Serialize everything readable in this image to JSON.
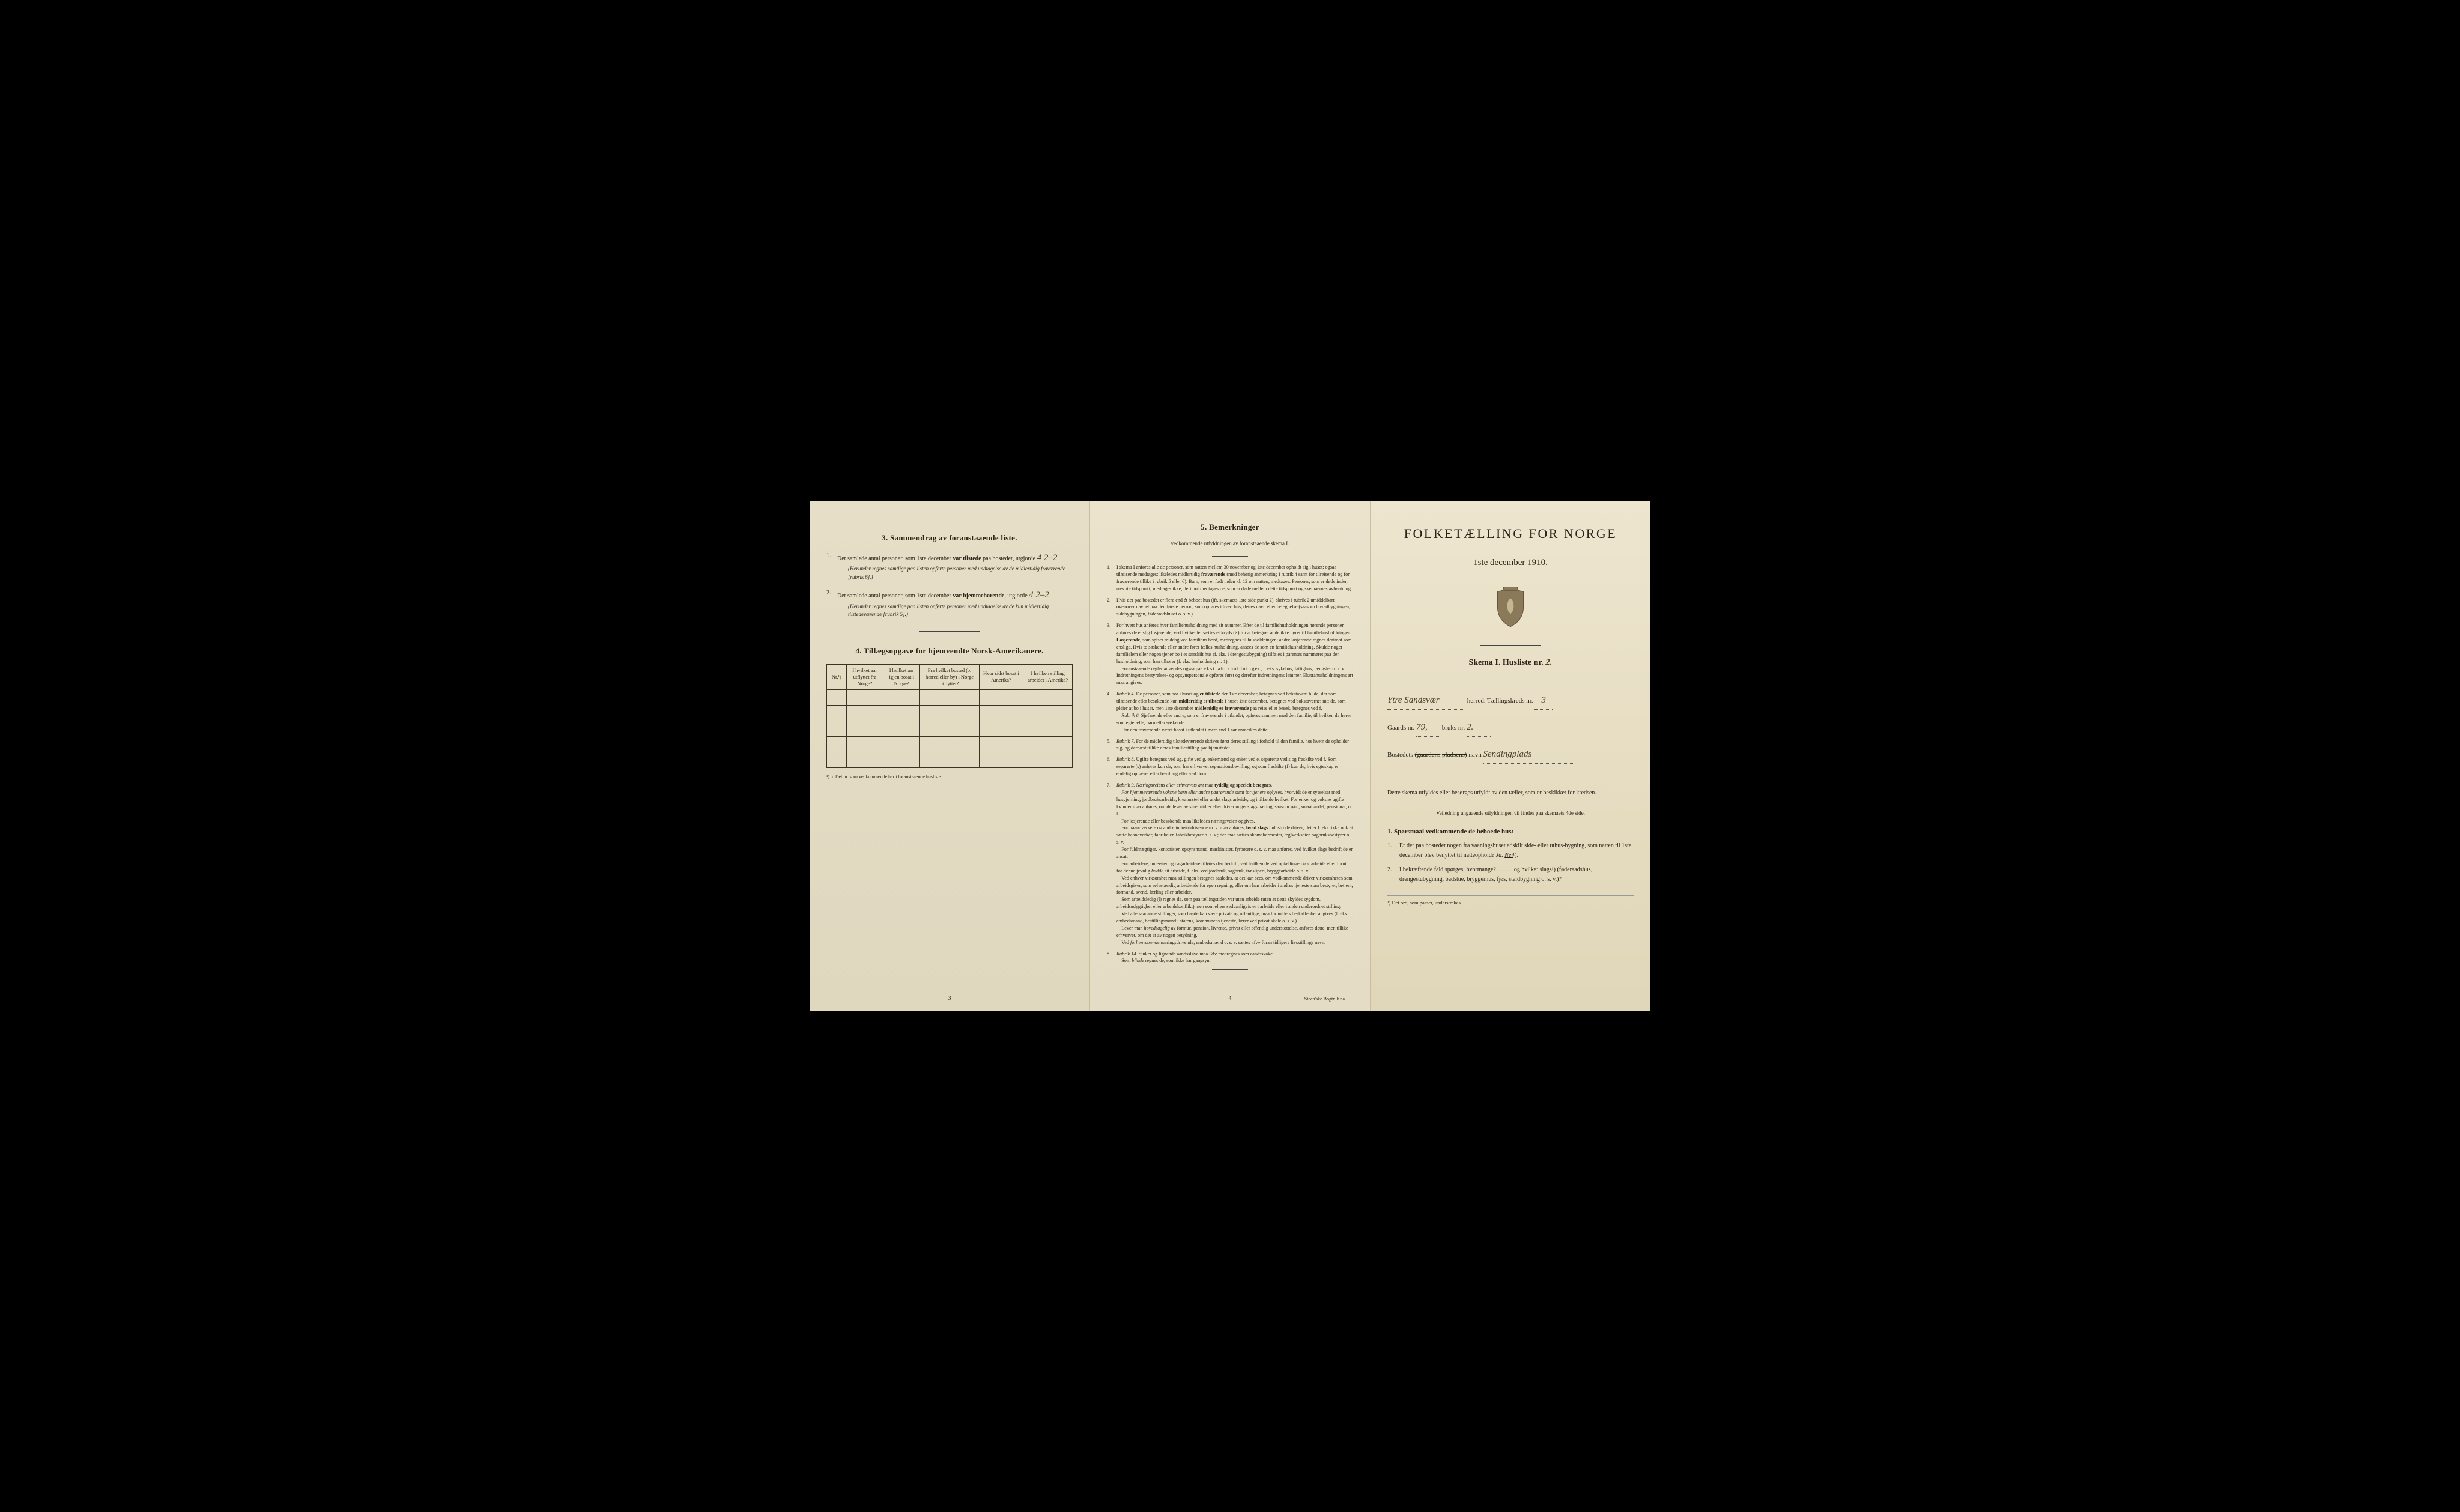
{
  "panel_left": {
    "sec3_title": "3.  Sammendrag av foranstaaende liste.",
    "item1_pre": "Det samlede antal personer, som 1ste december",
    "item1_bold": "var tilstede",
    "item1_post": "paa bostedet, utgjorde",
    "item1_value": "4  2–2",
    "item1_note": "(Herunder regnes samtlige paa listen opførte personer med undtagelse av de midlertidig fraværende [rubrik 6].)",
    "item2_pre": "Det samlede antal personer, som 1ste december",
    "item2_bold": "var hjemmehørende",
    "item2_post": ", utgjorde",
    "item2_value": "4  2–2",
    "item2_note": "(Herunder regnes samtlige paa listen opførte personer med undtagelse av de kun midlertidig tilstedeværende [rubrik 5].)",
    "sec4_title": "4.  Tillægsopgave for hjemvendte Norsk-Amerikanere.",
    "th_nr": "Nr.¹)",
    "th_a": "I hvilket aar utflyttet fra Norge?",
    "th_b": "I hvilket aar igjen bosat i Norge?",
    "th_c": "Fra hvilket bosted (ɔ: herred eller by) i Norge utflyttet?",
    "th_d": "Hvor sidst bosat i Amerika?",
    "th_e": "I hvilken stilling arbeidet i Amerika?",
    "footnote": "¹) ɔ: Det nr. som vedkommende har i foranstaaende husliste.",
    "page": "3"
  },
  "panel_mid": {
    "title": "5.  Bemerkninger",
    "sub": "vedkommende utfyldningen av foranstaaende skema I.",
    "items": [
      {
        "n": "1.",
        "t": "I skema I anføres alle de personer, som natten mellem 30 november og 1ste december opholdt sig i huset; ogsaa tilreisende medtages; likeledes midlertidig <b>fraværende</b> (med behørig anmerkning i rubrik 4 samt for tilreisende og for fraværende tillike i rubrik 5 eller 6). Barn, som er født inden kl. 12 om natten, medtages. Personer, som er døde inden nævnte tidspunkt, medtages ikke; derimot medtages de, som er døde mellem dette tidspunkt og skemaernes avhentning."
      },
      {
        "n": "2.",
        "t": "Hvis der paa bostedet er flere end ét beboet hus (jfr. skemaets 1ste side punkt 2), skrives i rubrik 2 umiddelbart ovenover navnet paa den første person, som opføres i hvert hus, dettes navn eller betegnelse (saasom hovedbygningen, sidebygningen, føderaadshuset o. s. v.)."
      },
      {
        "n": "3.",
        "t": "For hvert hus anføres hver familiehusholdning med sit nummer. Efter de til familiehusholdningen hørende personer anføres de enslig losjerende, ved hvilke der sættes et kryds (×) for at betegne, at de ikke hører til familiehusholdningen. <b>Losjerende</b>, som spiser middag ved familiens bord, medregnes til husholdningen; andre losjerende regnes derimot som enslige. Hvis to søskende eller andre fører fælles husholdning, ansees de som en familiehusholdning. Skulde noget familielem eller nogen tjener bo i et særskilt hus (f. eks. i drengestubygning) tilføies i parentes nummeret paa den husholdning, som han tilhører (f. eks. husholdning nr. 1).<br>&nbsp;&nbsp;&nbsp;&nbsp;Foranstaaende regler anvendes ogsaa paa <span class='letterspace'>ekstrahusholdninger</span>, f. eks. sykehus, fattighus, fængsler o. s. v. Indretningens bestyrelses- og opsynspersonale opføres først og derefter indretningens lemmer. Ekstrahusholdningens art maa angives."
      },
      {
        "n": "4.",
        "t": "<i>Rubrik 4.</i> De personer, som bor i huset og <b>er tilstede</b> der 1ste december, betegnes ved bokstaven: b; de, der som tilreisende eller besøkende kun <b>midlertidig</b> er <b>tilstede</b> i huset 1ste december, betegnes ved bokstaverne: mt; de, som pleier at bo i huset, men 1ste december <b>midlertidig er fraværende</b> paa reise eller besøk, betegnes ved f.<br>&nbsp;&nbsp;&nbsp;&nbsp;<i>Rubrik 6.</i> Sjøfarende eller andre, som er fraværende i utlandet, opføres sammen med den familie, til hvilken de hører som egtefælle, barn eller søskende.<br>&nbsp;&nbsp;&nbsp;&nbsp;Har den fraværende været bosat i utlandet i mere end 1 aar anmerkes dette."
      },
      {
        "n": "5.",
        "t": "<i>Rubrik 7.</i> For de midlertidig tilstedeværende skrives først deres stilling i forhold til den familie, hos hvem de opholder sig, og dernæst tillike deres familiestilling paa hjemstedet."
      },
      {
        "n": "6.",
        "t": "<i>Rubrik 8.</i> Ugifte betegnes ved ug, gifte ved g, enkemænd og enker ved e, separerte ved s og fraskilte ved f. Som separerte (s) anføres kun de, som har erhvervet separationsbevilling, og som fraskilte (f) kun de, hvis egteskap er endelig ophævet efter bevilling eller ved dom."
      },
      {
        "n": "7.",
        "t": "<i>Rubrik 9. Næringsveiens eller erhvervets art</i> maa <b>tydelig og specielt betegnes.</b><br>&nbsp;&nbsp;&nbsp;&nbsp;<i>For hjemmeværende voksne barn eller andre paarørende</i> samt for <i>tjenere</i> oplyses, hvorvidt de er sysselsat med husgjerning, jordbruksarbeide, kreaturstel eller andet slags arbeide, og i tilfælde hvilket. For enker og voksne ugifte kvinder maa anføres, om de lever av sine midler eller driver nogenslags næring, saasom søm, smaahandel, pensionat, o. l.<br>&nbsp;&nbsp;&nbsp;&nbsp;For losjerende eller besøkende maa likeledes næringsveien opgives.<br>&nbsp;&nbsp;&nbsp;&nbsp;For haandverkere og andre industridrivende m. v. maa anføres, <b>hvad slags</b> industri de driver; det er f. eks. ikke nok at sætte haandverker, fabrikeier, fabrikbestyrer o. s. v.; der maa sættes skomakermester, teglverkseier, sagbruksbestyrer o. s. v.<br>&nbsp;&nbsp;&nbsp;&nbsp;For fuldmægtiger, kontorister, opsynsmænd, maskinister, fyrbøtere o. s. v. maa anføres, ved hvilket slags bedrift de er ansat.<br>&nbsp;&nbsp;&nbsp;&nbsp;For arbeidere, inderster og dagarbeidere tilføies den bedrift, ved hvilken de ved optællingen <i>har</i> arbeide eller forut for denne jevnlig <i>hadde</i> sit arbeide, f. eks. ved jordbruk, sagbruk, træsliperi, bryggearbeide o. s. v.<br>&nbsp;&nbsp;&nbsp;&nbsp;Ved enhver virksomhet maa stillingen betegnes saaledes, at det kan sees, om vedkommende driver virksomheten som arbeidsgiver, som selvstændig arbeidende for egen regning, eller om han arbeider i andres tjeneste som bestyrer, betjent, formand, svend, lærling eller arbeider.<br>&nbsp;&nbsp;&nbsp;&nbsp;Som arbeidsledig (l) regnes de, som paa tællingstiden var uten arbeide (uten at dette skyldes sygdom, arbeidsudygtighet eller arbeidskonflikt) men som ellers sedvanligvis er i arbeide eller i anden underordnet stilling.<br>&nbsp;&nbsp;&nbsp;&nbsp;Ved alle saadanne stillinger, som baade kan være private og offentlige, maa forholdets beskaffenhet angives (f. eks. embedsmand, bestillingsmand i statens, kommunens tjeneste, lærer ved privat skole o. s. v.).<br>&nbsp;&nbsp;&nbsp;&nbsp;Lever man <i>hovedsagelig</i> av formue, pension, livrente, privat eller offentlig understøttelse, anføres dette, men tillike erhvervet, om det er av nogen betydning.<br>&nbsp;&nbsp;&nbsp;&nbsp;Ved <i>forhenværende</i> næringsdrivende, embedsmænd o. s. v. sættes «fv» foran tidligere livsstillings navn."
      },
      {
        "n": "8.",
        "t": "<i>Rubrik 14.</i> Sinker og lignende aandssløve maa <i>ikke</i> medregnes som aandssvake.<br>&nbsp;&nbsp;&nbsp;&nbsp;Som <i>blinde</i> regnes de, som ikke har gangsyn."
      }
    ],
    "page": "4",
    "printer": "Steen'ske Bogtr.  Kr.a."
  },
  "panel_right": {
    "title": "FOLKETÆLLING FOR NORGE",
    "sub": "1ste december 1910.",
    "skema": "Skema I.  Husliste nr.",
    "husliste_nr": "2.",
    "herred_hw": "Ytre Sandsvær",
    "herred_label": "herred.  Tællingskreds nr.",
    "kreds_nr": "3",
    "gaard_label": "Gaards nr.",
    "gaard_nr": "79,",
    "bruks_label": "bruks nr.",
    "bruks_nr": "2.",
    "bosted_label": "Bostedets",
    "bosted_struck": "(gaardens",
    "bosted_struck2": "pladsens)",
    "bosted_post": "navn",
    "bosted_hw": "Sendingplads",
    "body1": "Dette skema utfyldes eller besørges utfyldt av den tæller, som er beskikket for kredsen.",
    "body2": "Veiledning angaaende utfyldningen vil findes paa skemaets 4de side.",
    "q_head": "1. Spørsmaal vedkommende de beboede hus:",
    "q1": "Er der paa bostedet nogen fra vaaningshuset adskilt side- eller uthus-bygning, som natten til 1ste december blev benyttet til natteophold?",
    "q1_ja": "Ja.",
    "q1_nei": "Nei",
    "q1_sup": "¹).",
    "q2": "I bekræftende fald spørges: hvormange?............og hvilket slags¹) (føderaadshus, drengestubygning, badstue, bryggerhus, fjøs, staldbygning o. s. v.)?",
    "footnote": "¹) Det ord, som passer, understrekes."
  }
}
